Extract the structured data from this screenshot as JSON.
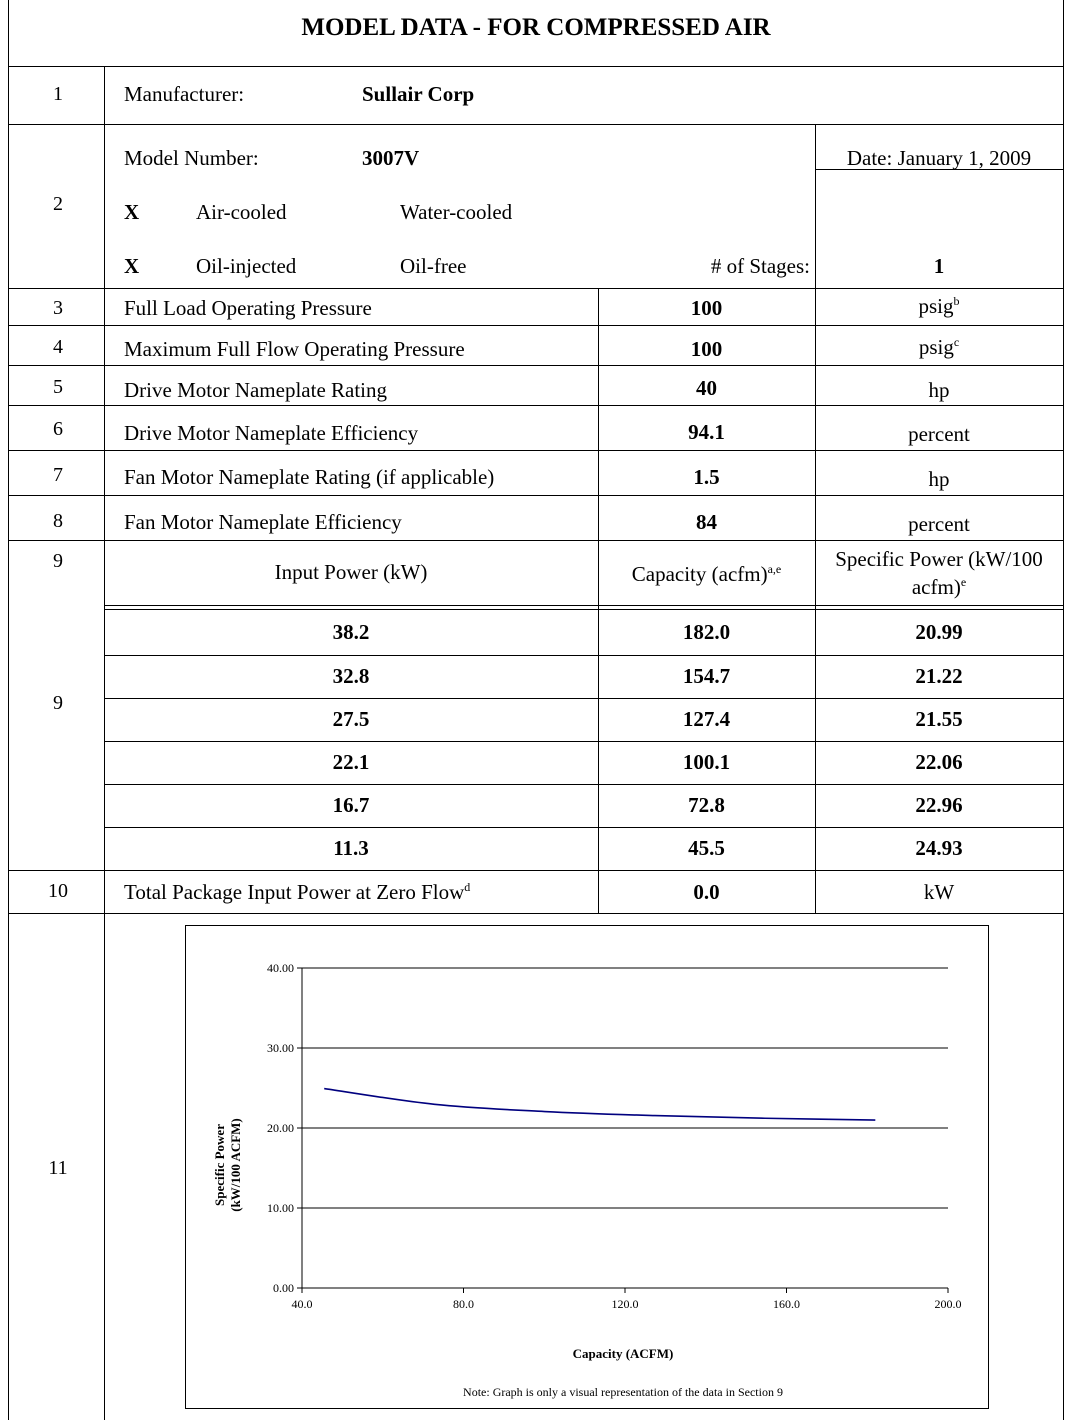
{
  "title": "MODEL DATA - FOR COMPRESSED AIR",
  "rows": {
    "r1": {
      "num": "1",
      "label": "Manufacturer:",
      "value": "Sullair Corp"
    },
    "r2": {
      "num": "2",
      "model_label": "Model Number:",
      "model_value": "3007V",
      "date": "Date: January 1, 2009",
      "cool_x": "X",
      "cool_a": "Air-cooled",
      "cool_b": "Water-cooled",
      "oil_x": "X",
      "oil_a": "Oil-injected",
      "oil_b": "Oil-free",
      "stages_label": "# of Stages:",
      "stages_value": "1"
    },
    "r3": {
      "num": "3",
      "label": "Full Load Operating Pressure",
      "value": "100",
      "unit": "psig",
      "sup": "b"
    },
    "r4": {
      "num": "4",
      "label": "Maximum Full Flow Operating Pressure",
      "value": "100",
      "unit": "psig",
      "sup": "c"
    },
    "r5": {
      "num": "5",
      "label": "Drive Motor Nameplate Rating",
      "value": "40",
      "unit": "hp"
    },
    "r6": {
      "num": "6",
      "label": "Drive Motor Nameplate Efficiency",
      "value": "94.1",
      "unit": "percent"
    },
    "r7": {
      "num": "7",
      "label": "Fan Motor Nameplate Rating (if applicable)",
      "value": "1.5",
      "unit": "hp"
    },
    "r8": {
      "num": "8",
      "label": "Fan Motor Nameplate Efficiency",
      "value": "84",
      "unit": "percent"
    },
    "r9": {
      "num_top": "9",
      "num": "9",
      "h_power": "Input Power (kW)",
      "h_cap": "Capacity (acfm)",
      "h_cap_sup": "a,e",
      "h_sp1": "Specific Power (kW/100",
      "h_sp2": "acfm)",
      "h_sp_sup": "e",
      "data": [
        {
          "power": "38.2",
          "cap": "182.0",
          "sp": "20.99"
        },
        {
          "power": "32.8",
          "cap": "154.7",
          "sp": "21.22"
        },
        {
          "power": "27.5",
          "cap": "127.4",
          "sp": "21.55"
        },
        {
          "power": "22.1",
          "cap": "100.1",
          "sp": "22.06"
        },
        {
          "power": "16.7",
          "cap": "72.8",
          "sp": "22.96"
        },
        {
          "power": "11.3",
          "cap": "45.5",
          "sp": "24.93"
        }
      ]
    },
    "r10": {
      "num": "10",
      "label": "Total Package Input Power at Zero Flow",
      "sup": "d",
      "value": "0.0",
      "unit": "kW"
    },
    "r11": {
      "num": "11"
    }
  },
  "chart_data": {
    "type": "line",
    "title": "",
    "xlabel": "Capacity (ACFM)",
    "ylabel_line1": "Specific Power",
    "ylabel_line2": "(kW/100 ACFM)",
    "xlim": [
      40,
      200
    ],
    "ylim": [
      0,
      40
    ],
    "x_ticks": [
      "40.0",
      "80.0",
      "120.0",
      "160.0",
      "200.0"
    ],
    "y_ticks": [
      "0.00",
      "10.00",
      "20.00",
      "30.00",
      "40.00"
    ],
    "grid": "horizontal",
    "line_color": "#00007f",
    "series": [
      {
        "x": [
          182.0,
          154.7,
          127.4,
          100.1,
          72.8,
          45.5
        ],
        "y": [
          20.99,
          21.22,
          21.55,
          22.06,
          22.96,
          24.93
        ]
      }
    ],
    "note": "Note:  Graph is only a visual representation of the data in Section 9"
  }
}
